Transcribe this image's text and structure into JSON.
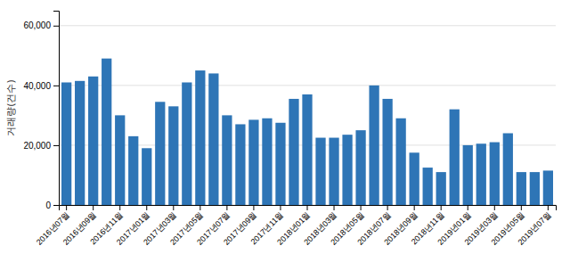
{
  "chart_data": {
    "type": "bar",
    "y_label": "거래량(건수)",
    "categories": [
      "2016년07월",
      null,
      "2016년09월",
      null,
      "2016년11월",
      null,
      "2017년01월",
      null,
      "2017년03월",
      null,
      "2017년05월",
      null,
      "2017년07월",
      null,
      "2017년09월",
      null,
      "2017년11월",
      null,
      "2018년01월",
      null,
      "2018년03월",
      null,
      "2018년05월",
      null,
      "2018년07월",
      null,
      "2018년09월",
      null,
      "2018년11월",
      null,
      "2019년01월",
      null,
      "2019년03월",
      null,
      "2019년05월",
      null,
      "2019년07월"
    ],
    "values": [
      41000,
      41500,
      43000,
      49000,
      30000,
      23000,
      19000,
      34500,
      33000,
      41000,
      45000,
      44000,
      30000,
      27000,
      28500,
      29000,
      27500,
      35500,
      37000,
      22500,
      22500,
      23500,
      25000,
      40000,
      35500,
      29000,
      17500,
      12500,
      11000,
      32000,
      20000,
      20500,
      21000,
      24000,
      11000,
      11000,
      11500
    ],
    "color": "#2e75b6",
    "ylim": [
      0,
      65000
    ],
    "yticks": [
      0,
      {
        "value": 20000,
        "label": "20,000"
      },
      {
        "value": 40000,
        "label": "40,000"
      },
      {
        "value": 60000,
        "label": "60,000"
      }
    ],
    "grid": true
  }
}
